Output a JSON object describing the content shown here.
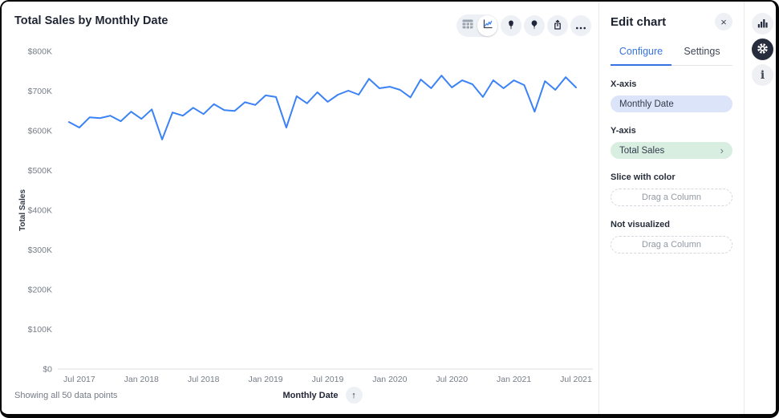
{
  "colors": {
    "accent": "#3673e3",
    "line": "#3b82f6",
    "pill_x": "#dce4f9",
    "pill_y": "#d8eee1",
    "icon_dark": "#242b3d"
  },
  "icons": {
    "close": "×",
    "chevron_right": "›",
    "sort_ascending": "↑",
    "info": "i"
  },
  "chart_card": {
    "title": "Total Sales by Monthly Date",
    "footnote": "Showing all 50 data points",
    "x_axis_control": {
      "label": "Monthly Date"
    },
    "toolbar": [
      "table-view",
      "line-chart-view",
      "pin",
      "lightbulb",
      "share",
      "more-options"
    ]
  },
  "panel": {
    "title": "Edit chart",
    "tabs": [
      {
        "label": "Configure",
        "active": true
      },
      {
        "label": "Settings",
        "active": false
      }
    ],
    "sections": {
      "x_axis": {
        "label": "X-axis",
        "value": "Monthly Date"
      },
      "y_axis": {
        "label": "Y-axis",
        "value": "Total Sales"
      },
      "slice": {
        "label": "Slice with color",
        "placeholder": "Drag a Column"
      },
      "not_visualized": {
        "label": "Not visualized",
        "placeholder": "Drag a Column"
      }
    }
  },
  "rail": [
    "bar-chart",
    "settings-gear",
    "info"
  ],
  "chart_data": {
    "type": "line",
    "title": "Total Sales by Monthly Date",
    "xlabel": "Monthly Date",
    "ylabel": "Total Sales",
    "unit": "USD thousands",
    "ylim_k": [
      0,
      800
    ],
    "grid": false,
    "legend": false,
    "line_color": "#3b82f6",
    "y_ticks": [
      "$0",
      "$100K",
      "$200K",
      "$300K",
      "$400K",
      "$500K",
      "$600K",
      "$700K",
      "$800K"
    ],
    "x_tick_labels": [
      "Jul 2017",
      "Jan 2018",
      "Jul 2018",
      "Jan 2019",
      "Jul 2019",
      "Jan 2020",
      "Jul 2020",
      "Jan 2021",
      "Jul 2021"
    ],
    "x": [
      "Jun 2017",
      "Jul 2017",
      "Aug 2017",
      "Sep 2017",
      "Oct 2017",
      "Nov 2017",
      "Dec 2017",
      "Jan 2018",
      "Feb 2018",
      "Mar 2018",
      "Apr 2018",
      "May 2018",
      "Jun 2018",
      "Jul 2018",
      "Aug 2018",
      "Sep 2018",
      "Oct 2018",
      "Nov 2018",
      "Dec 2018",
      "Jan 2019",
      "Feb 2019",
      "Mar 2019",
      "Apr 2019",
      "May 2019",
      "Jun 2019",
      "Jul 2019",
      "Aug 2019",
      "Sep 2019",
      "Oct 2019",
      "Nov 2019",
      "Dec 2019",
      "Jan 2020",
      "Feb 2020",
      "Mar 2020",
      "Apr 2020",
      "May 2020",
      "Jun 2020",
      "Jul 2020",
      "Aug 2020",
      "Sep 2020",
      "Oct 2020",
      "Nov 2020",
      "Dec 2020",
      "Jan 2021",
      "Feb 2021",
      "Mar 2021",
      "Apr 2021",
      "May 2021",
      "Jun 2021",
      "Jul 2021"
    ],
    "values_k": [
      622,
      608,
      634,
      632,
      638,
      624,
      648,
      630,
      654,
      578,
      646,
      638,
      658,
      642,
      667,
      652,
      650,
      672,
      665,
      689,
      685,
      608,
      687,
      669,
      697,
      673,
      691,
      701,
      691,
      731,
      707,
      711,
      703,
      684,
      729,
      707,
      739,
      709,
      727,
      717,
      685,
      727,
      707,
      727,
      715,
      648,
      725,
      703,
      735,
      709
    ]
  }
}
